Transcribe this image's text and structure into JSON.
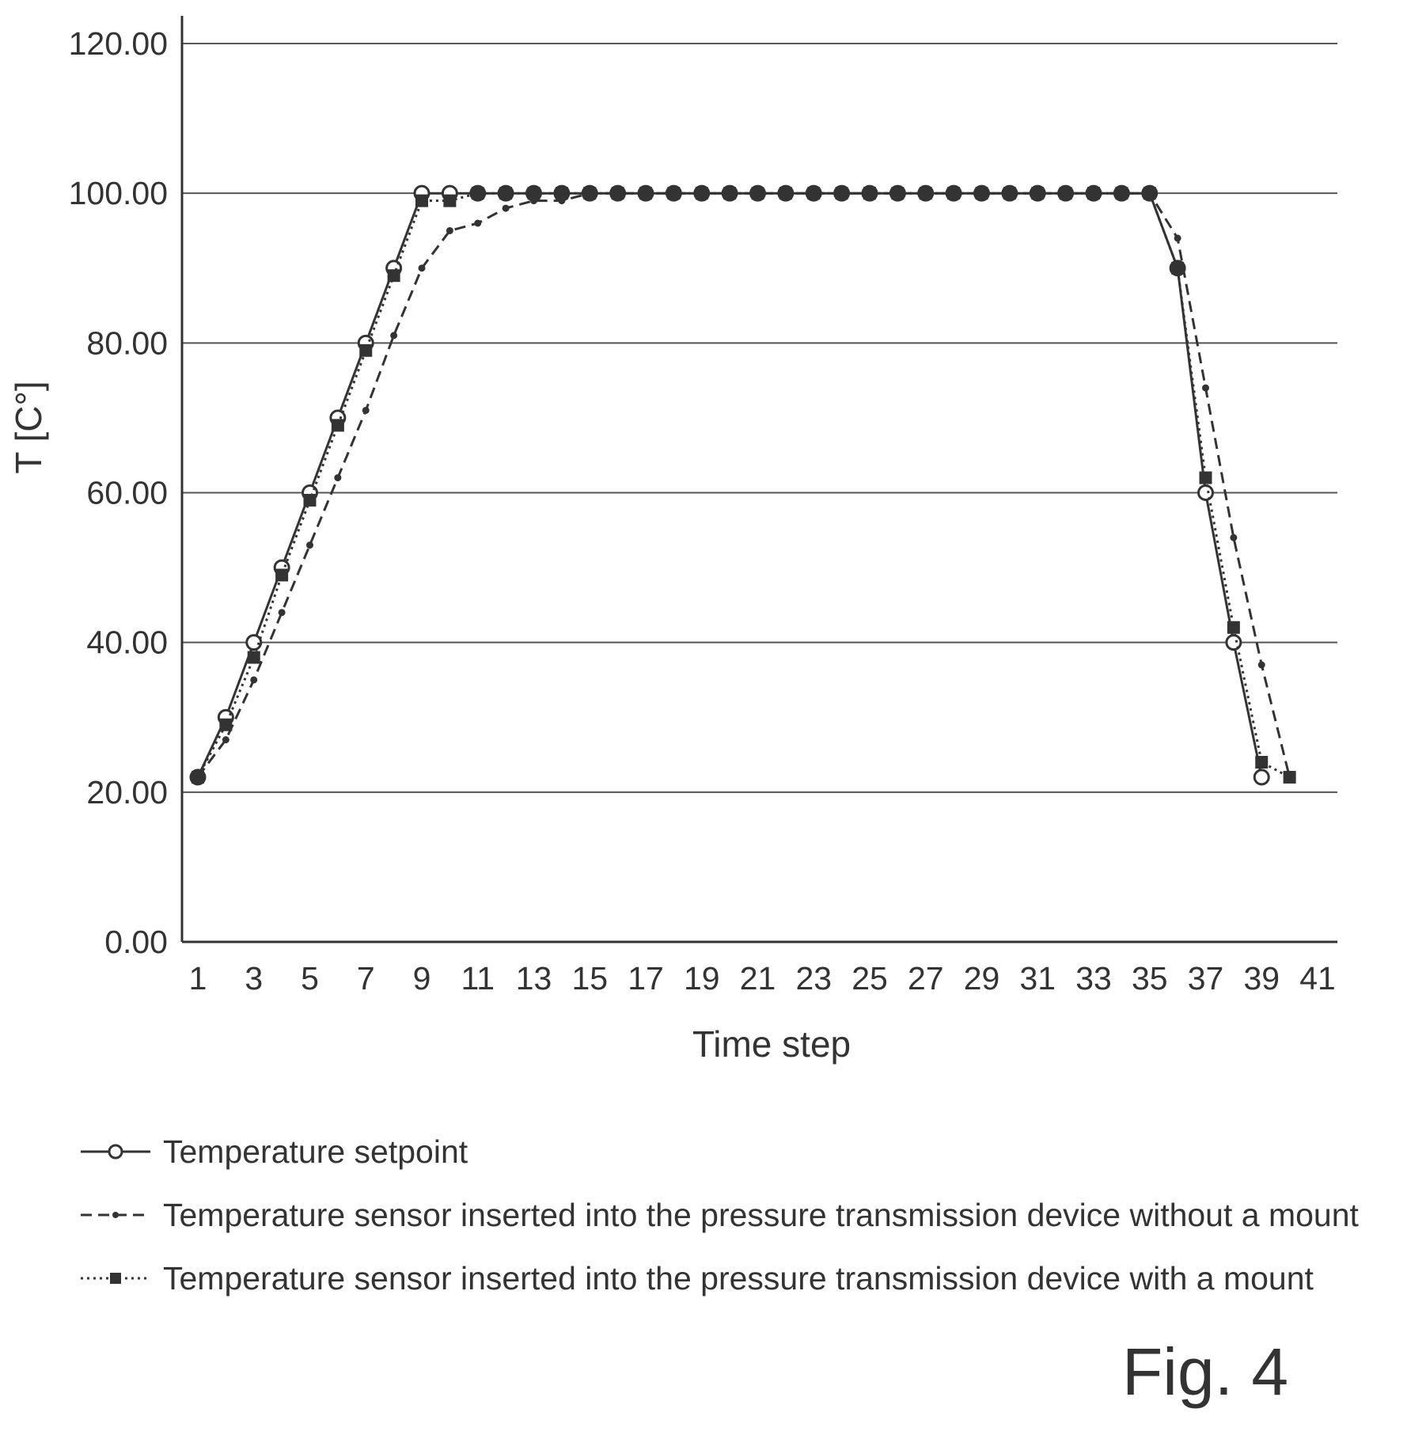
{
  "figure_label": "Fig. 4",
  "legend": [
    {
      "label": "Temperature setpoint",
      "marker": "open-circle",
      "line": "solid"
    },
    {
      "label": "Temperature sensor inserted into the pressure transmission device without a mount",
      "marker": "small-dot",
      "line": "dashed"
    },
    {
      "label": "Temperature sensor inserted into the pressure transmission device with a mount",
      "marker": "filled-square",
      "line": "dotted"
    }
  ],
  "colors": {
    "ink": "#333333",
    "grid": "#555555",
    "background": "#ffffff"
  },
  "chart_data": {
    "type": "line",
    "title": "",
    "xlabel": "Time step",
    "ylabel": "T [C°]",
    "ylim": [
      0,
      120
    ],
    "xlim": [
      1,
      41
    ],
    "y_ticks": [
      "0.00",
      "20.00",
      "40.00",
      "60.00",
      "80.00",
      "100.00",
      "120.00"
    ],
    "x_ticks": [
      "1",
      "3",
      "5",
      "7",
      "9",
      "11",
      "13",
      "15",
      "17",
      "19",
      "21",
      "23",
      "25",
      "27",
      "29",
      "31",
      "33",
      "35",
      "37",
      "39",
      "41"
    ],
    "grid": "horizontal",
    "legend_position": "bottom",
    "series": [
      {
        "name": "Temperature setpoint",
        "x": [
          1,
          2,
          3,
          4,
          5,
          6,
          7,
          8,
          9,
          10,
          11,
          12,
          13,
          14,
          15,
          16,
          17,
          18,
          19,
          20,
          21,
          22,
          23,
          24,
          25,
          26,
          27,
          28,
          29,
          30,
          31,
          32,
          33,
          34,
          35,
          36,
          37,
          38,
          39
        ],
        "values": [
          22,
          30,
          40,
          50,
          60,
          70,
          80,
          90,
          100,
          100,
          100,
          100,
          100,
          100,
          100,
          100,
          100,
          100,
          100,
          100,
          100,
          100,
          100,
          100,
          100,
          100,
          100,
          100,
          100,
          100,
          100,
          100,
          100,
          100,
          100,
          90,
          60,
          40,
          22
        ]
      },
      {
        "name": "Temperature sensor inserted into the pressure transmission device without a mount",
        "x": [
          1,
          2,
          3,
          4,
          5,
          6,
          7,
          8,
          9,
          10,
          11,
          12,
          13,
          14,
          15,
          16,
          17,
          18,
          19,
          20,
          21,
          22,
          23,
          24,
          25,
          26,
          27,
          28,
          29,
          30,
          31,
          32,
          33,
          34,
          35,
          36,
          37,
          38,
          39,
          40
        ],
        "values": [
          22,
          27,
          35,
          44,
          53,
          62,
          71,
          81,
          90,
          95,
          96,
          98,
          99,
          99,
          100,
          100,
          100,
          100,
          100,
          100,
          100,
          100,
          100,
          100,
          100,
          100,
          100,
          100,
          100,
          100,
          100,
          100,
          100,
          100,
          100,
          94,
          74,
          54,
          37,
          22
        ]
      },
      {
        "name": "Temperature sensor inserted into the pressure transmission device with a mount",
        "x": [
          1,
          2,
          3,
          4,
          5,
          6,
          7,
          8,
          9,
          10,
          11,
          12,
          13,
          14,
          15,
          16,
          17,
          18,
          19,
          20,
          21,
          22,
          23,
          24,
          25,
          26,
          27,
          28,
          29,
          30,
          31,
          32,
          33,
          34,
          35,
          36,
          37,
          38,
          39,
          40
        ],
        "values": [
          22,
          29,
          38,
          49,
          59,
          69,
          79,
          89,
          99,
          99,
          100,
          100,
          100,
          100,
          100,
          100,
          100,
          100,
          100,
          100,
          100,
          100,
          100,
          100,
          100,
          100,
          100,
          100,
          100,
          100,
          100,
          100,
          100,
          100,
          100,
          90,
          62,
          42,
          24,
          22
        ]
      }
    ]
  }
}
